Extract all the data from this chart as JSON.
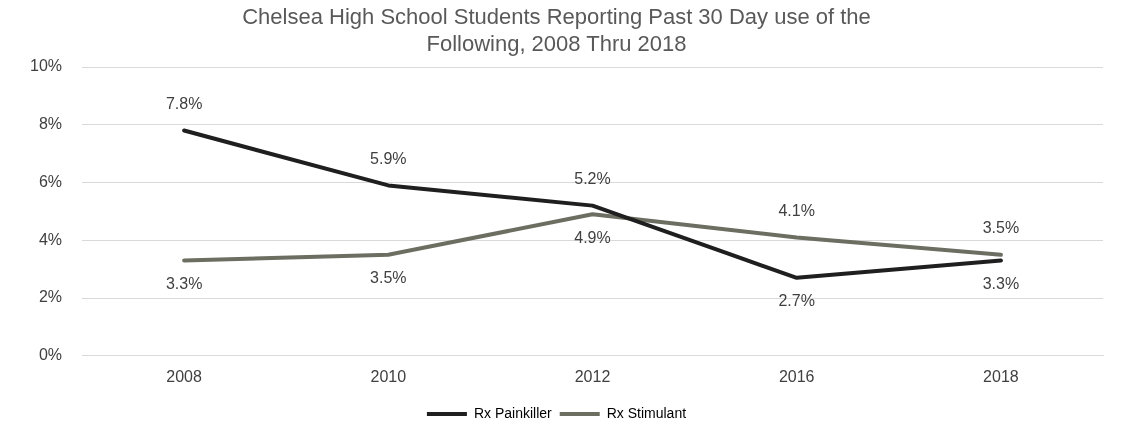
{
  "chart_data": {
    "type": "line",
    "title": "Chelsea High School Students Reporting Past 30 Day use of the Following, 2008 Thru 2018",
    "categories": [
      "2008",
      "2010",
      "2012",
      "2016",
      "2018"
    ],
    "series": [
      {
        "name": "Rx Painkiller",
        "color": "#1f1f1f",
        "values": [
          7.8,
          5.9,
          5.2,
          2.7,
          3.3
        ],
        "value_labels": [
          "7.8%",
          "5.9%",
          "5.2%",
          "2.7%",
          "3.3%"
        ]
      },
      {
        "name": "Rx Stimulant",
        "color": "#6b6e60",
        "values": [
          3.3,
          3.5,
          4.9,
          4.1,
          3.5
        ],
        "value_labels": [
          "3.3%",
          "3.5%",
          "4.9%",
          "4.1%",
          "3.5%"
        ]
      }
    ],
    "ylim": [
      0,
      10
    ],
    "yticks": [
      {
        "value": 0,
        "label": "0%"
      },
      {
        "value": 2,
        "label": "2%"
      },
      {
        "value": 4,
        "label": "4%"
      },
      {
        "value": 6,
        "label": "6%"
      },
      {
        "value": 8,
        "label": "8%"
      },
      {
        "value": 10,
        "label": "10%"
      }
    ],
    "grid": "y",
    "legend": "bottom",
    "marker": "none",
    "line_style": "solid"
  }
}
